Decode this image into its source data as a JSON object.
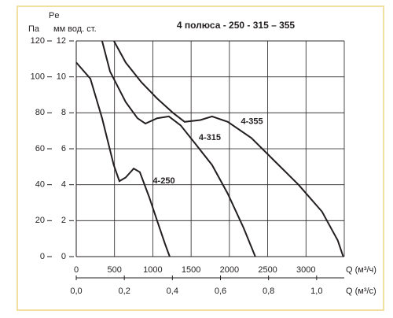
{
  "chart_data": {
    "type": "line",
    "title": "4 полюса - 250 - 315 – 355",
    "y_label_top": "Pe",
    "y_label": "Па",
    "y2_label": "мм вод. ст.",
    "x_label": "Q (м³/ч)",
    "x2_label": "Q (м³/с)",
    "xlim": [
      0,
      3500
    ],
    "xticks": [
      0,
      500,
      1000,
      1500,
      2000,
      2500,
      3000
    ],
    "x2lim": [
      0,
      1.115
    ],
    "x2ticks": [
      {
        "value": 0,
        "label": "0,0"
      },
      {
        "value": 0.2,
        "label": "0,2"
      },
      {
        "value": 0.4,
        "label": "0,4"
      },
      {
        "value": 0.6,
        "label": "0,6"
      },
      {
        "value": 0.8,
        "label": "0,8"
      },
      {
        "value": 1.0,
        "label": "1,0"
      }
    ],
    "ylim": [
      0,
      120
    ],
    "yticks": [
      0,
      20,
      40,
      60,
      80,
      100,
      120
    ],
    "y2lim": [
      0,
      12
    ],
    "y2ticks": [
      0,
      2,
      4,
      6,
      8,
      10,
      12
    ],
    "grid": true,
    "series": [
      {
        "name": "4-250",
        "color": "#231f20",
        "x": [
          0,
          185,
          338,
          490,
          564,
          646,
          750,
          830,
          954,
          1056,
          1160,
          1220
        ],
        "values": [
          108,
          99,
          77,
          51,
          42,
          44,
          49,
          47,
          33,
          20,
          7,
          0
        ]
      },
      {
        "name": "4-315",
        "color": "#231f20",
        "x": [
          338,
          441,
          646,
          800,
          903,
          1056,
          1210,
          1364,
          1569,
          1774,
          1979,
          2185,
          2338
        ],
        "values": [
          120,
          103,
          86,
          77,
          74,
          77,
          78,
          73,
          62,
          51,
          35,
          16,
          0
        ]
      },
      {
        "name": "4-355",
        "color": "#231f20",
        "x": [
          492,
          646,
          851,
          1056,
          1262,
          1415,
          1621,
          1774,
          1979,
          2287,
          2595,
          2903,
          3210,
          3415,
          3487
        ],
        "values": [
          120,
          108,
          97,
          88,
          80,
          75,
          76,
          78,
          75,
          66,
          53,
          40,
          25,
          9,
          0
        ]
      }
    ]
  }
}
